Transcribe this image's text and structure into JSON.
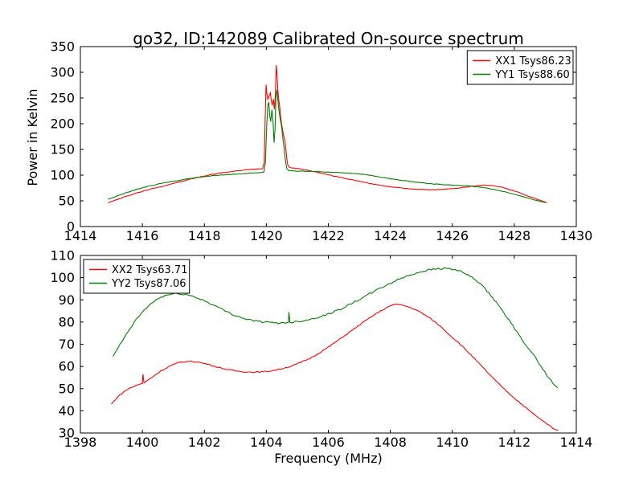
{
  "figure": {
    "background": "#ffffff",
    "axis_color": "#000000"
  },
  "chart_data": [
    {
      "type": "line",
      "title": "go32, ID:142089 Calibrated On-source spectrum",
      "xlabel": "",
      "ylabel": "Power in Kelvin",
      "xlim": [
        1414,
        1430
      ],
      "ylim": [
        0,
        350
      ],
      "xticks": [
        1414,
        1416,
        1418,
        1420,
        1422,
        1424,
        1426,
        1428,
        1430
      ],
      "yticks": [
        0,
        50,
        100,
        150,
        200,
        250,
        300,
        350
      ],
      "grid": false,
      "legend_position": "top-right",
      "series": [
        {
          "name": "XX1 Tsys86.23",
          "color": "#ff0000",
          "noise_k": 0.5,
          "points": [
            [
              1414.9,
              46
            ],
            [
              1415.2,
              53
            ],
            [
              1415.5,
              59
            ],
            [
              1415.8,
              65
            ],
            [
              1416.1,
              70
            ],
            [
              1416.4,
              75
            ],
            [
              1416.7,
              79
            ],
            [
              1417.0,
              84
            ],
            [
              1417.3,
              88
            ],
            [
              1417.6,
              93
            ],
            [
              1417.9,
              97
            ],
            [
              1418.2,
              101
            ],
            [
              1418.5,
              104
            ],
            [
              1418.9,
              107
            ],
            [
              1419.3,
              110
            ],
            [
              1419.7,
              112
            ],
            [
              1419.88,
              113
            ],
            [
              1419.93,
              125
            ],
            [
              1419.96,
              200
            ],
            [
              1419.99,
              276
            ],
            [
              1420.02,
              258
            ],
            [
              1420.05,
              247
            ],
            [
              1420.09,
              254
            ],
            [
              1420.13,
              260
            ],
            [
              1420.16,
              245
            ],
            [
              1420.19,
              236
            ],
            [
              1420.23,
              248
            ],
            [
              1420.26,
              228
            ],
            [
              1420.29,
              258
            ],
            [
              1420.32,
              314
            ],
            [
              1420.34,
              300
            ],
            [
              1420.37,
              268
            ],
            [
              1420.4,
              247
            ],
            [
              1420.43,
              233
            ],
            [
              1420.46,
              215
            ],
            [
              1420.49,
              200
            ],
            [
              1420.52,
              190
            ],
            [
              1420.55,
              179
            ],
            [
              1420.58,
              172
            ],
            [
              1420.6,
              166
            ],
            [
              1420.63,
              150
            ],
            [
              1420.66,
              132
            ],
            [
              1420.69,
              120
            ],
            [
              1420.73,
              116
            ],
            [
              1420.8,
              114
            ],
            [
              1421.0,
              113
            ],
            [
              1421.3,
              110
            ],
            [
              1421.6,
              106
            ],
            [
              1421.9,
              102
            ],
            [
              1422.2,
              98
            ],
            [
              1422.6,
              93
            ],
            [
              1423.0,
              88
            ],
            [
              1423.4,
              83
            ],
            [
              1423.8,
              79
            ],
            [
              1424.2,
              76
            ],
            [
              1424.6,
              73.5
            ],
            [
              1425.0,
              72
            ],
            [
              1425.4,
              71.5
            ],
            [
              1425.8,
              72.5
            ],
            [
              1426.2,
              75
            ],
            [
              1426.6,
              78
            ],
            [
              1427.0,
              80.5
            ],
            [
              1427.3,
              80
            ],
            [
              1427.6,
              76.5
            ],
            [
              1427.9,
              71
            ],
            [
              1428.2,
              65
            ],
            [
              1428.5,
              58
            ],
            [
              1428.8,
              52
            ],
            [
              1429.05,
              46
            ]
          ]
        },
        {
          "name": "YY1 Tsys88.60",
          "color": "#008000",
          "noise_k": 0.5,
          "points": [
            [
              1414.9,
              53
            ],
            [
              1415.2,
              60
            ],
            [
              1415.5,
              66
            ],
            [
              1415.8,
              72
            ],
            [
              1416.1,
              77
            ],
            [
              1416.4,
              81
            ],
            [
              1416.7,
              85
            ],
            [
              1417.0,
              88
            ],
            [
              1417.3,
              91
            ],
            [
              1417.6,
              94
            ],
            [
              1417.9,
              96.5
            ],
            [
              1418.2,
              98.5
            ],
            [
              1418.6,
              100.5
            ],
            [
              1419.0,
              102
            ],
            [
              1419.4,
              103.5
            ],
            [
              1419.8,
              105
            ],
            [
              1419.92,
              106
            ],
            [
              1419.97,
              125
            ],
            [
              1420.01,
              195
            ],
            [
              1420.05,
              238
            ],
            [
              1420.08,
              241
            ],
            [
              1420.11,
              215
            ],
            [
              1420.14,
              204
            ],
            [
              1420.18,
              227
            ],
            [
              1420.21,
              210
            ],
            [
              1420.25,
              163
            ],
            [
              1420.28,
              190
            ],
            [
              1420.31,
              250
            ],
            [
              1420.34,
              266
            ],
            [
              1420.36,
              255
            ],
            [
              1420.39,
              235
            ],
            [
              1420.42,
              220
            ],
            [
              1420.45,
              208
            ],
            [
              1420.48,
              199
            ],
            [
              1420.51,
              185
            ],
            [
              1420.54,
              168
            ],
            [
              1420.57,
              153
            ],
            [
              1420.6,
              137
            ],
            [
              1420.63,
              123
            ],
            [
              1420.66,
              113
            ],
            [
              1420.72,
              109
            ],
            [
              1420.9,
              108
            ],
            [
              1421.2,
              107.5
            ],
            [
              1421.6,
              107
            ],
            [
              1422.0,
              106
            ],
            [
              1422.4,
              104.5
            ],
            [
              1422.8,
              103.5
            ],
            [
              1423.2,
              101
            ],
            [
              1423.6,
              97
            ],
            [
              1424.0,
              93
            ],
            [
              1424.4,
              89.5
            ],
            [
              1424.8,
              86.5
            ],
            [
              1425.2,
              84
            ],
            [
              1425.6,
              82
            ],
            [
              1426.0,
              80.5
            ],
            [
              1426.4,
              79.5
            ],
            [
              1426.8,
              77.5
            ],
            [
              1427.2,
              74
            ],
            [
              1427.5,
              70
            ],
            [
              1427.8,
              66
            ],
            [
              1428.1,
              61
            ],
            [
              1428.4,
              56
            ],
            [
              1428.7,
              51
            ],
            [
              1429.0,
              46.5
            ]
          ]
        }
      ]
    },
    {
      "type": "line",
      "title": "",
      "xlabel": "Frequency (MHz)",
      "ylabel": "",
      "xlim": [
        1398,
        1414
      ],
      "ylim": [
        30,
        110
      ],
      "xticks": [
        1398,
        1400,
        1402,
        1404,
        1406,
        1408,
        1410,
        1412,
        1414
      ],
      "yticks": [
        30,
        40,
        50,
        60,
        70,
        80,
        90,
        100,
        110
      ],
      "grid": false,
      "legend_position": "top-left",
      "series": [
        {
          "name": "XX2 Tsys63.71",
          "color": "#ff0000",
          "noise_k": 0.25,
          "points": [
            [
              1399.0,
              43
            ],
            [
              1399.2,
              46.2
            ],
            [
              1399.4,
              48.6
            ],
            [
              1399.6,
              50.3
            ],
            [
              1399.8,
              51.4
            ],
            [
              1399.95,
              52.1
            ],
            [
              1400.0,
              52.3
            ],
            [
              1400.02,
              56.5
            ],
            [
              1400.05,
              52.6
            ],
            [
              1400.3,
              55
            ],
            [
              1400.6,
              58
            ],
            [
              1400.9,
              60.3
            ],
            [
              1401.2,
              61.8
            ],
            [
              1401.5,
              62.3
            ],
            [
              1401.8,
              62
            ],
            [
              1402.1,
              61
            ],
            [
              1402.4,
              59.8
            ],
            [
              1402.7,
              58.7
            ],
            [
              1403.0,
              58
            ],
            [
              1403.3,
              57.6
            ],
            [
              1403.6,
              57.4
            ],
            [
              1403.9,
              57.6
            ],
            [
              1404.2,
              58.1
            ],
            [
              1404.5,
              59
            ],
            [
              1404.8,
              60.1
            ],
            [
              1405.1,
              61.7
            ],
            [
              1405.4,
              63.6
            ],
            [
              1405.7,
              66
            ],
            [
              1406.0,
              68.7
            ],
            [
              1406.3,
              71.6
            ],
            [
              1406.6,
              74.6
            ],
            [
              1406.9,
              77.6
            ],
            [
              1407.2,
              80.6
            ],
            [
              1407.5,
              83.4
            ],
            [
              1407.8,
              85.9
            ],
            [
              1408.0,
              87.3
            ],
            [
              1408.15,
              88
            ],
            [
              1408.4,
              87.6
            ],
            [
              1408.7,
              86.3
            ],
            [
              1409.0,
              84.2
            ],
            [
              1409.3,
              81.5
            ],
            [
              1409.6,
              78.3
            ],
            [
              1409.9,
              74.4
            ],
            [
              1410.2,
              70.7
            ],
            [
              1410.6,
              65.2
            ],
            [
              1411.0,
              59.3
            ],
            [
              1411.4,
              53.5
            ],
            [
              1411.8,
              48.2
            ],
            [
              1412.2,
              43.4
            ],
            [
              1412.6,
              38.8
            ],
            [
              1413.0,
              34.6
            ],
            [
              1413.25,
              32.2
            ],
            [
              1413.42,
              31
            ]
          ]
        },
        {
          "name": "YY2 Tsys87.06",
          "color": "#008000",
          "noise_k": 0.4,
          "points": [
            [
              1399.05,
              64.5
            ],
            [
              1399.2,
              68
            ],
            [
              1399.4,
              72.5
            ],
            [
              1399.6,
              77
            ],
            [
              1399.8,
              81
            ],
            [
              1400.0,
              84.5
            ],
            [
              1400.2,
              87.3
            ],
            [
              1400.4,
              89.6
            ],
            [
              1400.6,
              91.2
            ],
            [
              1400.8,
              92.2
            ],
            [
              1401.0,
              92.7
            ],
            [
              1401.2,
              92.8
            ],
            [
              1401.4,
              92.4
            ],
            [
              1401.6,
              91.7
            ],
            [
              1401.8,
              90.7
            ],
            [
              1402.0,
              89.6
            ],
            [
              1402.2,
              88.3
            ],
            [
              1402.4,
              86.9
            ],
            [
              1402.6,
              85.5
            ],
            [
              1402.8,
              84.2
            ],
            [
              1403.0,
              83
            ],
            [
              1403.2,
              82
            ],
            [
              1403.4,
              81.2
            ],
            [
              1403.6,
              80.6
            ],
            [
              1403.8,
              80.2
            ],
            [
              1404.0,
              79.9
            ],
            [
              1404.2,
              79.7
            ],
            [
              1404.5,
              79.6
            ],
            [
              1404.71,
              79.8
            ],
            [
              1404.73,
              84.5
            ],
            [
              1404.76,
              79.9
            ],
            [
              1405.0,
              80.2
            ],
            [
              1405.3,
              80.9
            ],
            [
              1405.6,
              81.9
            ],
            [
              1405.9,
              83.1
            ],
            [
              1406.2,
              84.7
            ],
            [
              1406.5,
              86.6
            ],
            [
              1406.8,
              88.7
            ],
            [
              1407.1,
              90.9
            ],
            [
              1407.4,
              93.2
            ],
            [
              1407.7,
              95.4
            ],
            [
              1408.0,
              97.5
            ],
            [
              1408.3,
              99.4
            ],
            [
              1408.6,
              101
            ],
            [
              1408.9,
              102.4
            ],
            [
              1409.2,
              103.4
            ],
            [
              1409.5,
              104
            ],
            [
              1409.8,
              104.2
            ],
            [
              1410.1,
              103.6
            ],
            [
              1410.4,
              102
            ],
            [
              1410.7,
              99.5
            ],
            [
              1411.0,
              95.8
            ],
            [
              1411.3,
              91
            ],
            [
              1411.6,
              85.5
            ],
            [
              1411.9,
              79.3
            ],
            [
              1412.2,
              73
            ],
            [
              1412.5,
              67.5
            ],
            [
              1412.8,
              61.5
            ],
            [
              1413.05,
              56
            ],
            [
              1413.25,
              52.3
            ],
            [
              1413.4,
              50.3
            ]
          ]
        }
      ]
    }
  ]
}
